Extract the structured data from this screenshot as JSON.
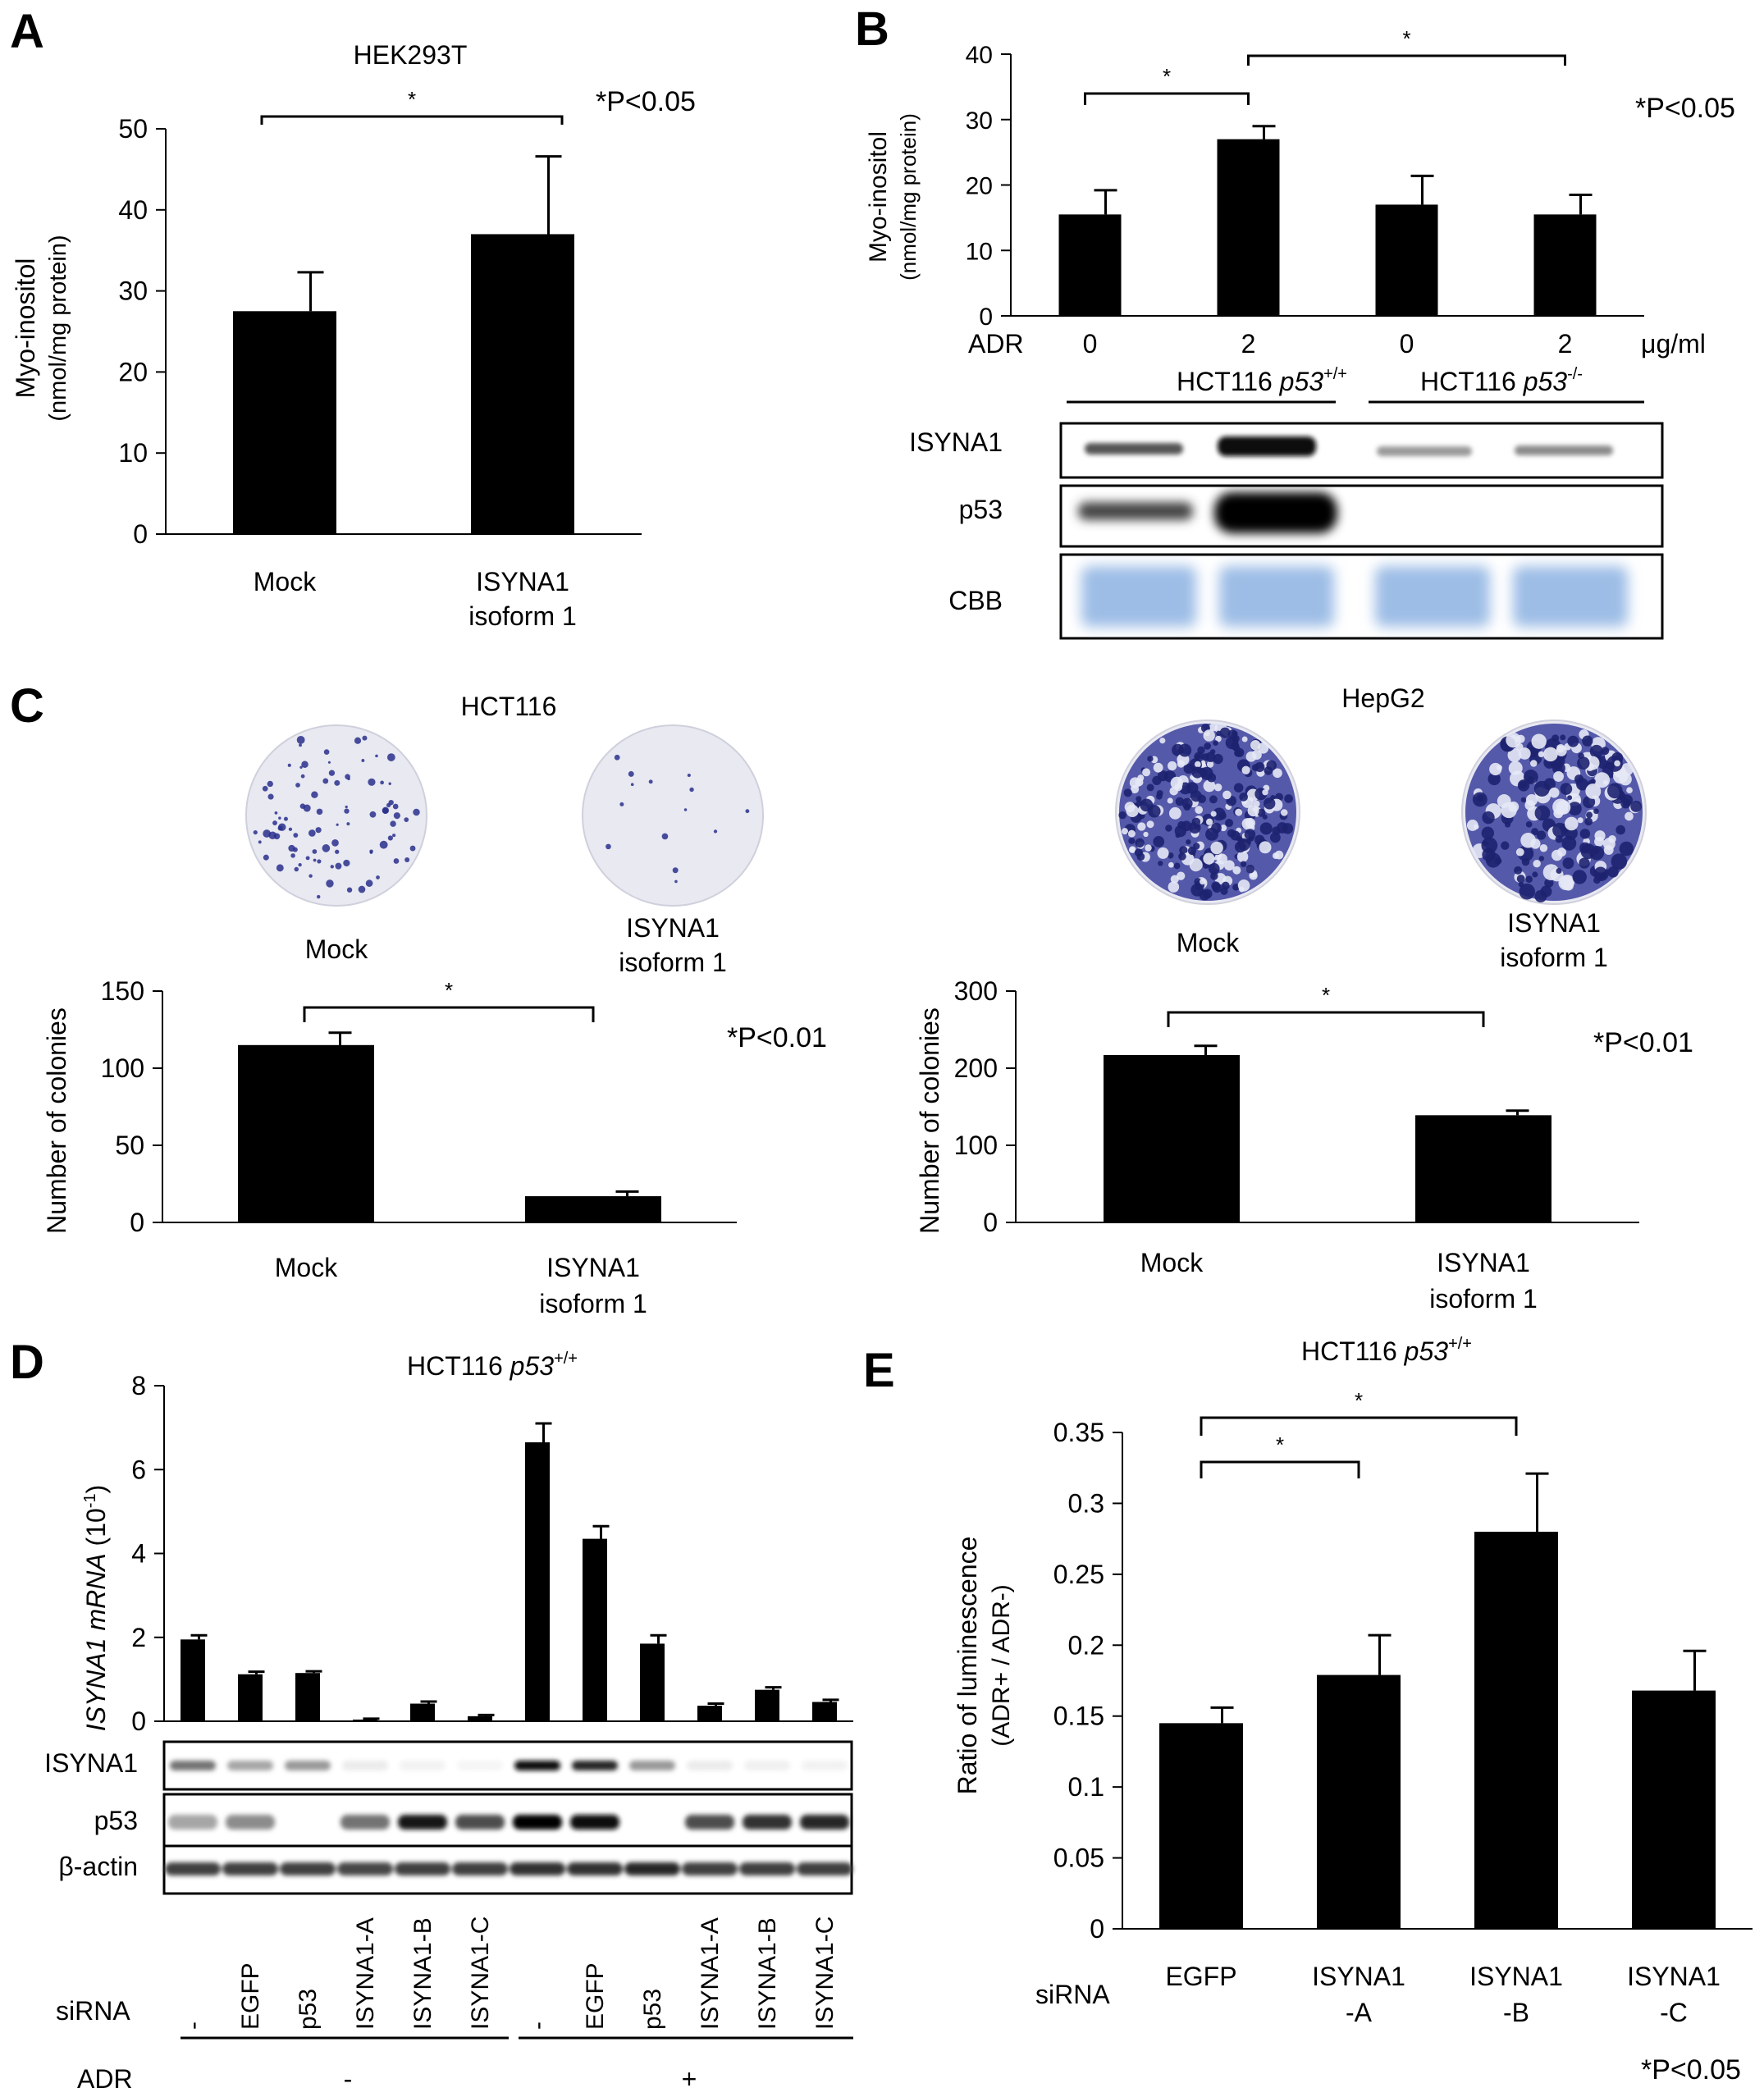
{
  "colors": {
    "bar": "#000000",
    "coomassie": "#9dbde6",
    "stain": "#2a2f8c",
    "plate": "#e8e9f1"
  },
  "panels": {
    "A": {
      "label": "A",
      "chart_data": {
        "type": "bar",
        "title": "HEK293T",
        "ylabel": [
          "Myo-inositol",
          "(nmol/mg protein)"
        ],
        "ylim": [
          0,
          50
        ],
        "yticks": [
          "0",
          "10",
          "20",
          "30",
          "40",
          "50"
        ],
        "categories": [
          [
            "Mock"
          ],
          [
            "ISYNA1",
            "isoform 1"
          ]
        ],
        "values": [
          27.5,
          37
        ],
        "errors": [
          4.8,
          9.6
        ],
        "sig_marker": "*",
        "pvalue_note": "*P<0.05"
      }
    },
    "B": {
      "label": "B",
      "chart_data": {
        "type": "bar",
        "ylabel": [
          "Myo-inositol",
          "(nmol/mg protein)"
        ],
        "ylim": [
          0,
          40
        ],
        "yticks": [
          "0",
          "10",
          "20",
          "30",
          "40"
        ],
        "row_label": "ADR",
        "categories": [
          "0",
          "2",
          "0",
          "2"
        ],
        "unit": "μg/ml",
        "values": [
          15.5,
          27,
          17,
          15.5
        ],
        "errors": [
          3.7,
          2.0,
          4.4,
          3.0
        ],
        "sig_marker_1": "*",
        "sig_marker_2": "*",
        "pvalue_note": "*P<0.05",
        "groups": [
          {
            "name": "HCT116 ",
            "gene": "p53",
            "sup": "+/+"
          },
          {
            "name": "HCT116 ",
            "gene": "p53",
            "sup": "-/-"
          }
        ]
      },
      "blots": [
        "ISYNA1",
        "p53",
        "CBB"
      ]
    },
    "C": {
      "label": "C",
      "left": {
        "title": "HCT116",
        "plate_labels": [
          [
            "Mock"
          ],
          [
            "ISYNA1",
            "isoform 1"
          ]
        ],
        "chart_data": {
          "type": "bar",
          "ylabel": "Number of colonies",
          "ylim": [
            0,
            150
          ],
          "yticks": [
            "0",
            "50",
            "100",
            "150"
          ],
          "categories": [
            [
              "Mock"
            ],
            [
              "ISYNA1",
              "isoform 1"
            ]
          ],
          "values": [
            115,
            17
          ],
          "errors": [
            8,
            3
          ],
          "sig_marker": "*",
          "pvalue_note": "*P<0.01"
        }
      },
      "right": {
        "title": "HepG2",
        "plate_labels": [
          [
            "Mock"
          ],
          [
            "ISYNA1",
            "isoform 1"
          ]
        ],
        "chart_data": {
          "type": "bar",
          "ylabel": "Number of colonies",
          "ylim": [
            0,
            300
          ],
          "yticks": [
            "0",
            "100",
            "200",
            "300"
          ],
          "categories": [
            [
              "Mock"
            ],
            [
              "ISYNA1",
              "isoform 1"
            ]
          ],
          "values": [
            217,
            139
          ],
          "errors": [
            12,
            6
          ],
          "sig_marker": "*",
          "pvalue_note": "*P<0.01"
        }
      }
    },
    "D": {
      "label": "D",
      "title": {
        "name": "HCT116 ",
        "gene": "p53",
        "sup": "+/+"
      },
      "chart_data": {
        "type": "bar",
        "ylabel": {
          "gene": "ISYNA1  mRNA",
          "rest": " (10",
          "exp": "-1",
          "close": ")"
        },
        "ylim": [
          0,
          8
        ],
        "yticks": [
          "0",
          "2",
          "4",
          "6",
          "8"
        ],
        "categories": [
          "-",
          "EGFP",
          "p53",
          "ISYNA1-A",
          "ISYNA1-B",
          "ISYNA1-C",
          "-",
          "EGFP",
          "p53",
          "ISYNA1-A",
          "ISYNA1-B",
          "ISYNA1-C"
        ],
        "values": [
          1.95,
          1.12,
          1.15,
          0.04,
          0.42,
          0.12,
          6.65,
          4.35,
          1.85,
          0.37,
          0.75,
          0.46
        ],
        "errors": [
          0.1,
          0.06,
          0.04,
          0.02,
          0.05,
          0.03,
          0.45,
          0.3,
          0.2,
          0.05,
          0.06,
          0.05
        ]
      },
      "blots": [
        "ISYNA1",
        "p53",
        "β-actin"
      ],
      "sirna_label": "siRNA",
      "adr_label": "ADR",
      "adr_groups": [
        "-",
        "+"
      ]
    },
    "E": {
      "label": "E",
      "title": {
        "name": "HCT116 ",
        "gene": "p53",
        "sup": "+/+"
      },
      "chart_data": {
        "type": "bar",
        "ylabel": [
          "Ratio  of  luminescence",
          "(ADR+ / ADR-)"
        ],
        "ylim": [
          0,
          0.35
        ],
        "yticks": [
          "0",
          "0.05",
          "0.1",
          "0.15",
          "0.2",
          "0.25",
          "0.3",
          "0.35"
        ],
        "row_label": "siRNA",
        "categories": [
          [
            "EGFP"
          ],
          [
            "ISYNA1",
            "-A"
          ],
          [
            "ISYNA1",
            "-B"
          ],
          [
            "ISYNA1",
            "-C"
          ]
        ],
        "values": [
          0.145,
          0.179,
          0.28,
          0.168
        ],
        "errors": [
          0.011,
          0.028,
          0.041,
          0.028
        ],
        "sig_marker_1": "*",
        "sig_marker_2": "*",
        "pvalue_note": "*P<0.05"
      }
    }
  }
}
